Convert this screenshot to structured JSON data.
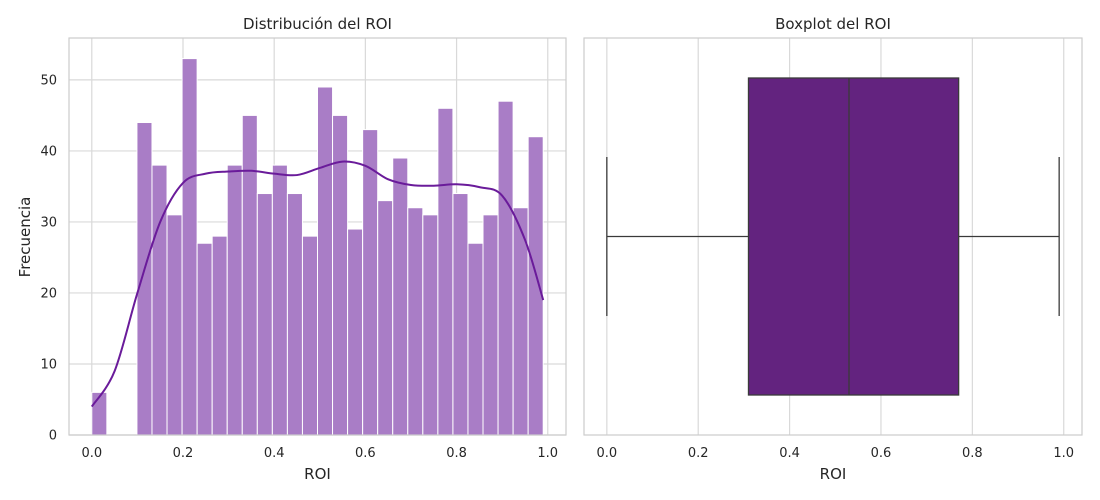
{
  "chart_data": [
    {
      "type": "bar",
      "title": "Distribución del ROI",
      "xlabel": "ROI",
      "ylabel": "Frecuencia",
      "xlim": [
        -0.05,
        1.04
      ],
      "ylim": [
        0,
        55.9
      ],
      "xticks": [
        "0.0",
        "0.2",
        "0.4",
        "0.6",
        "0.8",
        "1.0"
      ],
      "yticks": [
        "0",
        "10",
        "20",
        "30",
        "40",
        "50"
      ],
      "grid": true,
      "bar_color": "#a97dc6",
      "kde_color": "#6a1b9a",
      "bins": {
        "start": 0.0,
        "width": 0.033,
        "counts": [
          6,
          0,
          0,
          44,
          38,
          31,
          53,
          27,
          28,
          38,
          45,
          34,
          38,
          34,
          28,
          49,
          45,
          29,
          43,
          33,
          39,
          32,
          31,
          46,
          34,
          27,
          31,
          47,
          32,
          42
        ]
      },
      "kde": {
        "x": [
          0.0,
          0.05,
          0.1,
          0.15,
          0.2,
          0.25,
          0.3,
          0.35,
          0.4,
          0.45,
          0.5,
          0.55,
          0.6,
          0.65,
          0.7,
          0.75,
          0.8,
          0.85,
          0.9,
          0.95,
          0.99
        ],
        "y": [
          4,
          9,
          20,
          30,
          35.5,
          36.8,
          37.1,
          37.2,
          36.8,
          36.6,
          37.6,
          38.5,
          37.9,
          36,
          35.2,
          35.1,
          35.3,
          34.9,
          33.7,
          27.5,
          19
        ]
      }
    },
    {
      "type": "box",
      "title": "Boxplot del ROI",
      "xlabel": "ROI",
      "xlim": [
        -0.05,
        1.04
      ],
      "xticks": [
        "0.0",
        "0.2",
        "0.4",
        "0.6",
        "0.8",
        "1.0"
      ],
      "grid": true,
      "box_color": "#63237f",
      "min": 0.0,
      "q1": 0.31,
      "median": 0.53,
      "q3": 0.77,
      "max": 0.99
    }
  ]
}
